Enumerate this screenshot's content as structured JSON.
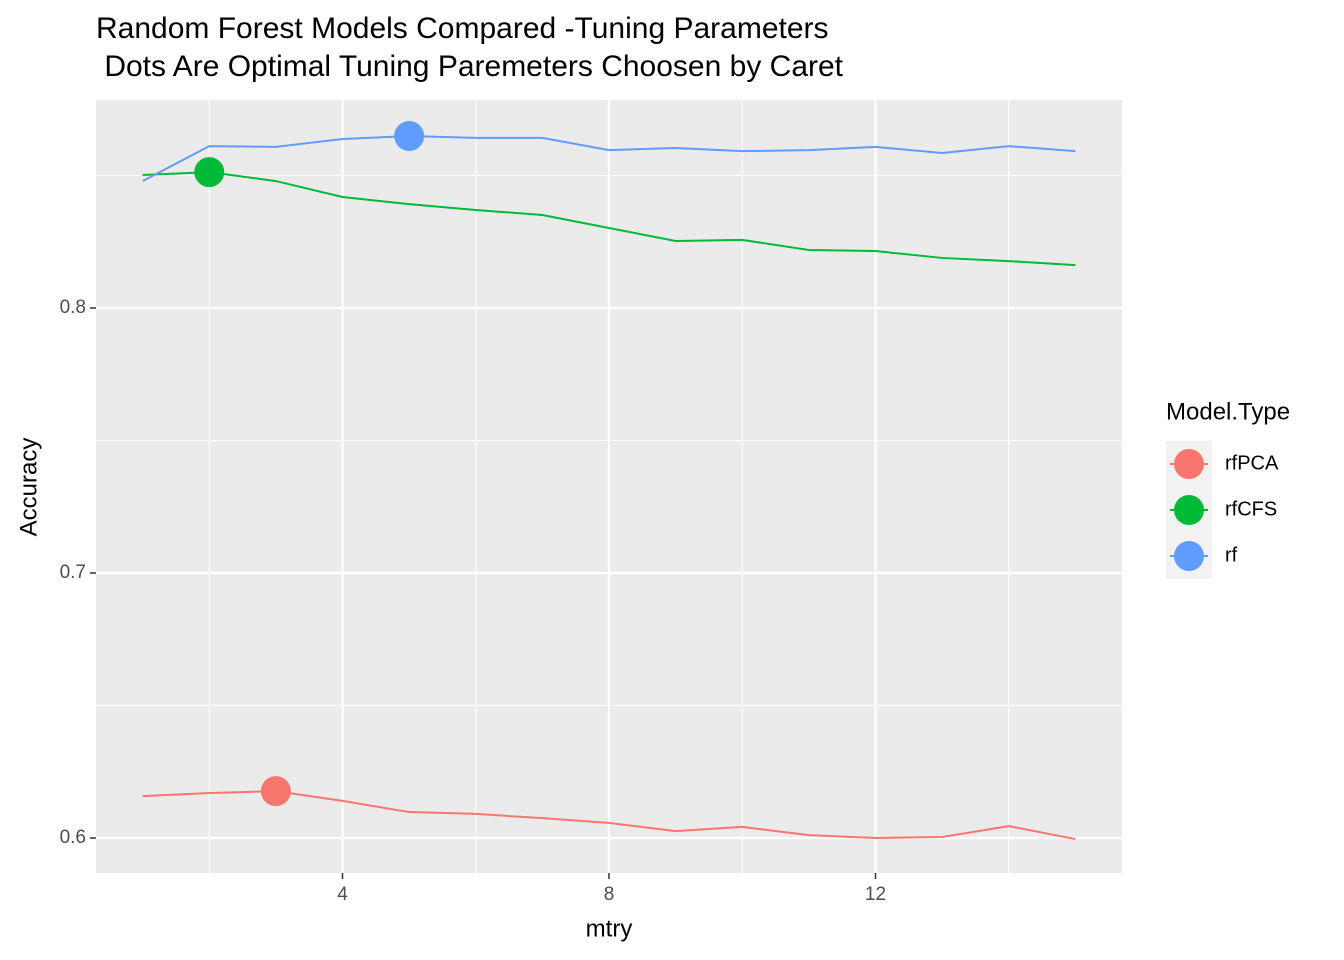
{
  "chart_data": {
    "type": "line",
    "title": [
      "Random Forest Models Compared -Tuning Parameters",
      " Dots Are Optimal Tuning Paremeters Choosen by Caret"
    ],
    "x_label": "mtry",
    "y_label": "Accuracy",
    "legend_title": "Model.Type",
    "x": [
      1,
      2,
      3,
      4,
      5,
      6,
      7,
      8,
      9,
      10,
      11,
      12,
      13,
      14,
      15
    ],
    "series": [
      {
        "name": "rfPCA",
        "color": "#F8766D",
        "optimal_x": 3,
        "values": [
          0.6158,
          0.617,
          0.6177,
          0.614,
          0.6098,
          0.6091,
          0.6075,
          0.6057,
          0.6026,
          0.6042,
          0.6011,
          0.6,
          0.6004,
          0.6045,
          0.5996
        ]
      },
      {
        "name": "rfCFS",
        "color": "#00BA38",
        "optimal_x": 2,
        "values": [
          0.8502,
          0.8513,
          0.8479,
          0.8419,
          0.8392,
          0.837,
          0.8351,
          0.8302,
          0.8253,
          0.8257,
          0.8219,
          0.8215,
          0.8189,
          0.8177,
          0.8162
        ]
      },
      {
        "name": "rf",
        "color": "#619CFF",
        "optimal_x": 5,
        "values": [
          0.8479,
          0.8611,
          0.8608,
          0.8638,
          0.8649,
          0.8642,
          0.8642,
          0.8596,
          0.8604,
          0.8592,
          0.8596,
          0.8608,
          0.8585,
          0.8611,
          0.8592
        ]
      }
    ],
    "xlim": [
      0.3,
      15.7
    ],
    "ylim": [
      0.5868,
      0.8785
    ],
    "xticks": [
      4,
      8,
      12
    ],
    "yticks": [
      0.6,
      0.7,
      0.8
    ],
    "x_minor_ticks": [
      2,
      6,
      10,
      14
    ],
    "y_minor_ticks": [
      0.65,
      0.75,
      0.85
    ],
    "grid": true,
    "legend_position": "right"
  }
}
